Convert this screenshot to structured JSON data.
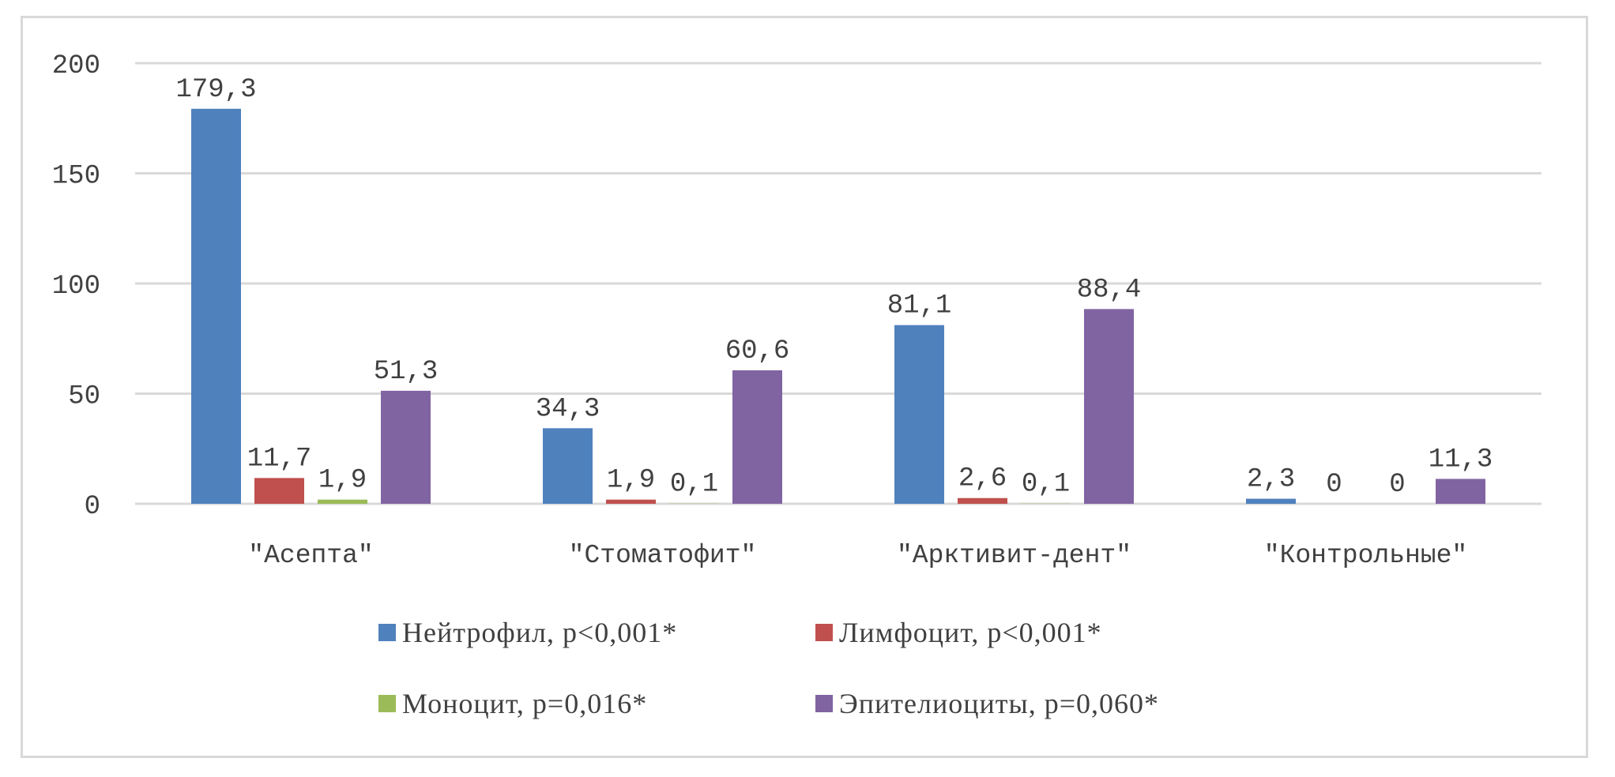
{
  "chart_data": {
    "type": "bar",
    "title": "",
    "xlabel": "",
    "ylabel": "",
    "ylim": [
      0,
      200
    ],
    "yticks": [
      0,
      50,
      100,
      150,
      200
    ],
    "grid": true,
    "legend_position": "bottom",
    "categories": [
      "\"Асепта\"",
      "\"Стоматофит\"",
      "\"Арктивит-дент\"",
      "\"Контрольные\""
    ],
    "series": [
      {
        "name": "Нейтрофил, p<0,001*",
        "color": "#4f81bd",
        "values": [
          179.3,
          34.3,
          81.1,
          2.3
        ],
        "labels": [
          "179,3",
          "34,3",
          "81,1",
          "2,3"
        ]
      },
      {
        "name": "Лимфоцит, p<0,001*",
        "color": "#c0504d",
        "values": [
          11.7,
          1.9,
          2.6,
          0
        ],
        "labels": [
          "11,7",
          "1,9",
          "2,6",
          "0"
        ]
      },
      {
        "name": "Моноцит, p=0,016*",
        "color": "#9bbb59",
        "values": [
          1.9,
          0.1,
          0.1,
          0
        ],
        "labels": [
          "1,9",
          "0,1",
          "0,1",
          "0"
        ]
      },
      {
        "name": "Эпителиоциты, p=0,060*",
        "color": "#8064a2",
        "values": [
          51.3,
          60.6,
          88.4,
          11.3
        ],
        "labels": [
          "51,3",
          "60,6",
          "88,4",
          "11,3"
        ]
      }
    ]
  }
}
